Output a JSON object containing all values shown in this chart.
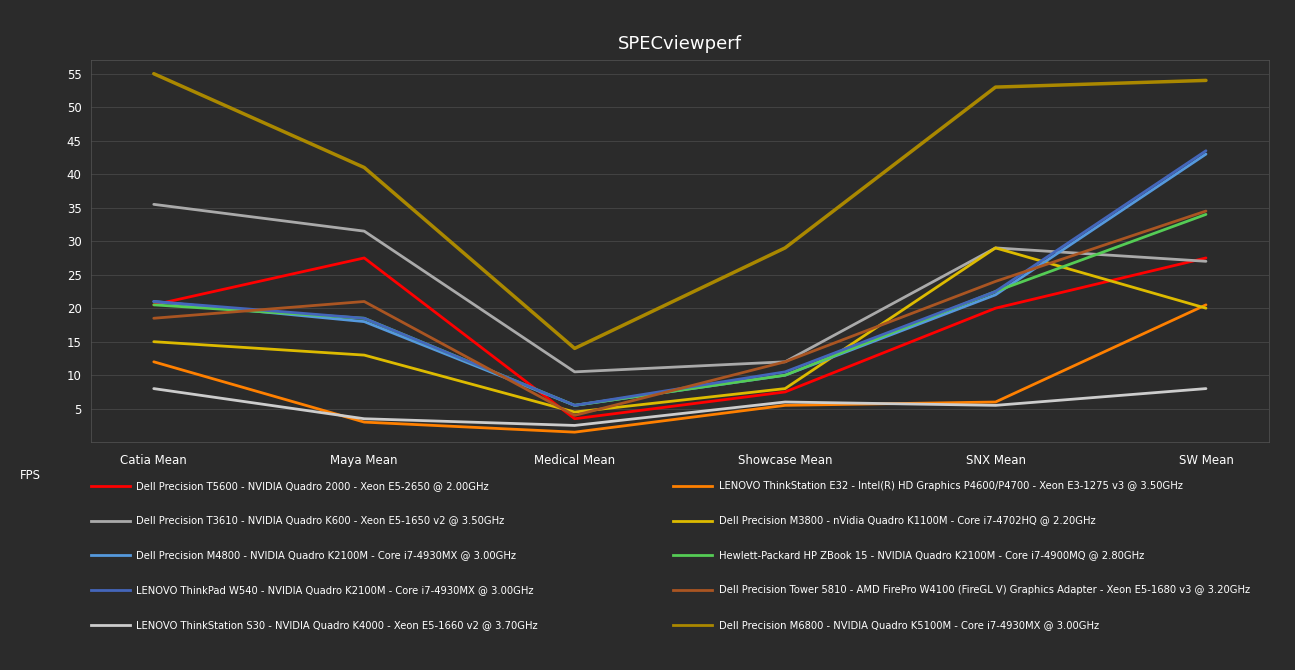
{
  "title": "SPECviewperf",
  "categories": [
    "Catia Mean",
    "Maya Mean",
    "Medical Mean",
    "Showcase Mean",
    "SNX Mean",
    "SW Mean"
  ],
  "ylim": [
    0,
    57
  ],
  "yticks": [
    5,
    10,
    15,
    20,
    25,
    30,
    35,
    40,
    45,
    50,
    55
  ],
  "ylabel": "FPS",
  "background_color": "#2b2b2b",
  "grid_color": "#4a4a4a",
  "title_color": "#ffffff",
  "tick_color": "#ffffff",
  "series": [
    {
      "label": "Dell Precision T5600 - NVIDIA Quadro 2000 - Xeon E5-2650 @ 2.00GHz",
      "color": "#ff0000",
      "linewidth": 2.0,
      "values": [
        20.5,
        27.5,
        3.5,
        7.5,
        20.0,
        27.5
      ]
    },
    {
      "label": "LENOVO ThinkStation E32 - Intel(R) HD Graphics P4600/P4700 - Xeon E3-1275 v3 @ 3.50GHz",
      "color": "#ff8000",
      "linewidth": 2.0,
      "values": [
        12.0,
        3.0,
        1.5,
        5.5,
        6.0,
        20.5
      ]
    },
    {
      "label": "Dell Precision T3610 - NVIDIA Quadro K600 - Xeon E5-1650 v2 @ 3.50GHz",
      "color": "#aaaaaa",
      "linewidth": 2.0,
      "values": [
        35.5,
        31.5,
        10.5,
        12.0,
        29.0,
        27.0
      ]
    },
    {
      "label": "Dell Precision M3800 - nVidia Quadro K1100M - Core i7-4702HQ @ 2.20GHz",
      "color": "#ddbb00",
      "linewidth": 2.0,
      "values": [
        15.0,
        13.0,
        4.5,
        8.0,
        29.0,
        20.0
      ]
    },
    {
      "label": "Dell Precision M4800 - NVIDIA Quadro K2100M - Core i7-4930MX @ 3.00GHz",
      "color": "#5599dd",
      "linewidth": 2.0,
      "values": [
        21.0,
        18.0,
        5.5,
        10.0,
        22.0,
        43.0
      ]
    },
    {
      "label": "Hewlett-Packard HP ZBook 15 - NVIDIA Quadro K2100M - Core i7-4900MQ @ 2.80GHz",
      "color": "#55cc55",
      "linewidth": 2.0,
      "values": [
        20.5,
        18.5,
        5.5,
        10.0,
        22.5,
        34.0
      ]
    },
    {
      "label": "LENOVO ThinkPad W540 - NVIDIA Quadro K2100M - Core i7-4930MX @ 3.00GHz",
      "color": "#4466bb",
      "linewidth": 2.0,
      "values": [
        21.0,
        18.5,
        5.5,
        10.5,
        22.5,
        43.5
      ]
    },
    {
      "label": "Dell Precision Tower 5810 - AMD FirePro W4100 (FireGL V) Graphics Adapter - Xeon E5-1680 v3 @ 3.20GHz",
      "color": "#aa5522",
      "linewidth": 2.0,
      "values": [
        18.5,
        21.0,
        4.0,
        12.0,
        24.0,
        34.5
      ]
    },
    {
      "label": "LENOVO ThinkStation S30 - NVIDIA Quadro K4000 - Xeon E5-1660 v2 @ 3.70GHz",
      "color": "#cccccc",
      "linewidth": 2.0,
      "values": [
        8.0,
        3.5,
        2.5,
        6.0,
        5.5,
        8.0
      ]
    },
    {
      "label": "Dell Precision M6800 - NVIDIA Quadro K5100M - Core i7-4930MX @ 3.00GHz",
      "color": "#aa8800",
      "linewidth": 2.5,
      "values": [
        55.0,
        41.0,
        14.0,
        29.0,
        53.0,
        54.0
      ]
    }
  ],
  "legend_col1": [
    {
      "label": "Dell Precision T5600 - NVIDIA Quadro 2000 - Xeon E5-2650 @ 2.00GHz",
      "color": "#ff0000"
    },
    {
      "label": "Dell Precision T3610 - NVIDIA Quadro K600 - Xeon E5-1650 v2 @ 3.50GHz",
      "color": "#aaaaaa"
    },
    {
      "label": "Dell Precision M4800 - NVIDIA Quadro K2100M - Core i7-4930MX @ 3.00GHz",
      "color": "#5599dd"
    },
    {
      "label": "LENOVO ThinkPad W540 - NVIDIA Quadro K2100M - Core i7-4930MX @ 3.00GHz",
      "color": "#4466bb"
    },
    {
      "label": "LENOVO ThinkStation S30 - NVIDIA Quadro K4000 - Xeon E5-1660 v2 @ 3.70GHz",
      "color": "#cccccc"
    }
  ],
  "legend_col2": [
    {
      "label": "LENOVO ThinkStation E32 - Intel(R) HD Graphics P4600/P4700 - Xeon E3-1275 v3 @ 3.50GHz",
      "color": "#ff8000"
    },
    {
      "label": "Dell Precision M3800 - nVidia Quadro K1100M - Core i7-4702HQ @ 2.20GHz",
      "color": "#ddbb00"
    },
    {
      "label": "Hewlett-Packard HP ZBook 15 - NVIDIA Quadro K2100M - Core i7-4900MQ @ 2.80GHz",
      "color": "#55cc55"
    },
    {
      "label": "Dell Precision Tower 5810 - AMD FirePro W4100 (FireGL V) Graphics Adapter - Xeon E5-1680 v3 @ 3.20GHz",
      "color": "#aa5522"
    },
    {
      "label": "Dell Precision M6800 - NVIDIA Quadro K5100M - Core i7-4930MX @ 3.00GHz",
      "color": "#aa8800"
    }
  ]
}
